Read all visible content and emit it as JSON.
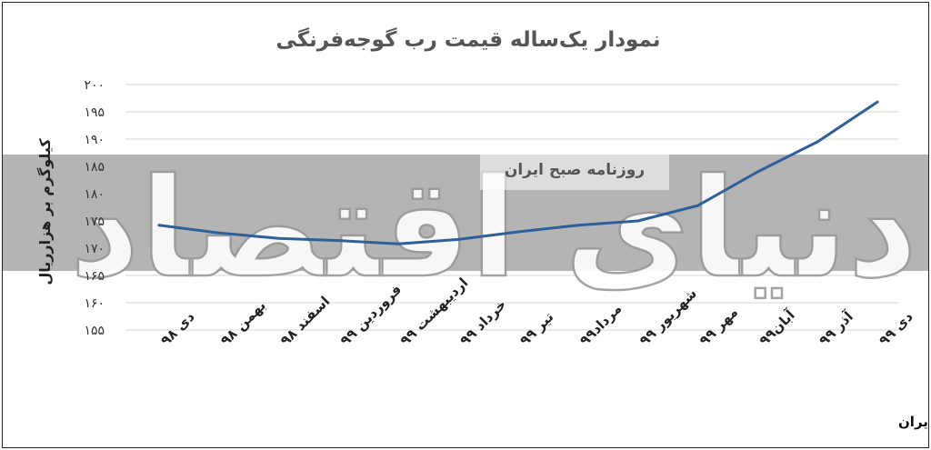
{
  "chart_data": {
    "type": "line",
    "title": "نمودار یک‌ساله قیمت رب گوجه‌فرنگی",
    "ylabel": "کیلوگرم بر هزارریال",
    "xlabel": "",
    "ylim": [
      155,
      200
    ],
    "yticks": [
      155,
      160,
      165,
      170,
      175,
      180,
      185,
      190,
      195,
      200
    ],
    "ytick_labels": [
      "۱۵۵",
      "۱۶۰",
      "۱۶۵",
      "۱۷۰",
      "۱۷۵",
      "۱۸۰",
      "۱۸۵",
      "۱۹۰",
      "۱۹۵",
      "۲۰۰"
    ],
    "categories": [
      "دی ۹۸",
      "بهمن ۹۸",
      "اسفند ۹۸",
      "فروردین ۹۹",
      "اردیبهشت ۹۹",
      "خرداد ۹۹",
      "تیر ۹۹",
      "مرداد۹۹",
      "شهریور ۹۹",
      "مهر ۹۹",
      "آبان۹۹",
      "آذر ۹۹",
      "دی ۹۹"
    ],
    "series": [
      {
        "values": [
          174.2,
          172.8,
          171.8,
          171.4,
          170.8,
          171.6,
          173.0,
          174.2,
          175.0,
          177.8,
          184.0,
          189.5,
          196.8
        ]
      }
    ],
    "grid": true,
    "line_color": "#2e5f99",
    "source": "منبع: مرکز آمار ایران"
  },
  "watermark": {
    "box_text": "روزنامه صبح ایران",
    "big_text": "دنیای اقتصاد",
    "band_color": "#b4b4b4"
  }
}
